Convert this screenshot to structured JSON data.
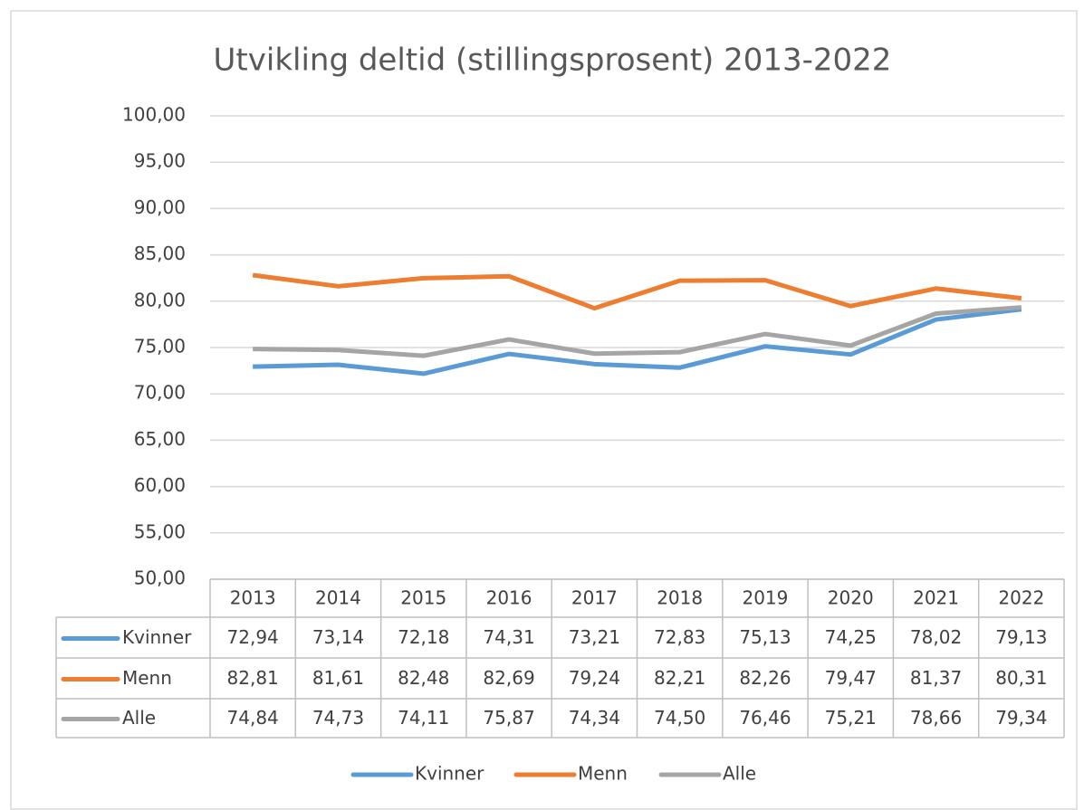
{
  "chart_data": {
    "type": "line",
    "title": "Utvikling deltid (stillingsprosent) 2013-2022",
    "categories": [
      "2013",
      "2014",
      "2015",
      "2016",
      "2017",
      "2018",
      "2019",
      "2020",
      "2021",
      "2022"
    ],
    "series": [
      {
        "name": "Kvinner",
        "color": "#5b9bd5",
        "values": [
          72.94,
          73.14,
          72.18,
          74.31,
          73.21,
          72.83,
          75.13,
          74.25,
          78.02,
          79.13
        ],
        "value_labels": [
          "72,94",
          "73,14",
          "72,18",
          "74,31",
          "73,21",
          "72,83",
          "75,13",
          "74,25",
          "78,02",
          "79,13"
        ]
      },
      {
        "name": "Menn",
        "color": "#ed7d31",
        "values": [
          82.81,
          81.61,
          82.48,
          82.69,
          79.24,
          82.21,
          82.26,
          79.47,
          81.37,
          80.31
        ],
        "value_labels": [
          "82,81",
          "81,61",
          "82,48",
          "82,69",
          "79,24",
          "82,21",
          "82,26",
          "79,47",
          "81,37",
          "80,31"
        ]
      },
      {
        "name": "Alle",
        "color": "#a5a5a5",
        "values": [
          74.84,
          74.73,
          74.11,
          75.87,
          74.34,
          74.5,
          76.46,
          75.21,
          78.66,
          79.34
        ],
        "value_labels": [
          "74,84",
          "74,73",
          "74,11",
          "75,87",
          "74,34",
          "74,50",
          "76,46",
          "75,21",
          "78,66",
          "79,34"
        ]
      }
    ],
    "ylim": [
      50,
      100
    ],
    "yticks": [
      {
        "value": 50,
        "label": "50,00"
      },
      {
        "value": 55,
        "label": "55,00"
      },
      {
        "value": 60,
        "label": "60,00"
      },
      {
        "value": 65,
        "label": "65,00"
      },
      {
        "value": 70,
        "label": "70,00"
      },
      {
        "value": 75,
        "label": "75,00"
      },
      {
        "value": 80,
        "label": "80,00"
      },
      {
        "value": 85,
        "label": "85,00"
      },
      {
        "value": 90,
        "label": "90,00"
      },
      {
        "value": 95,
        "label": "95,00"
      },
      {
        "value": 100,
        "label": "100,00"
      }
    ],
    "grid": true,
    "legend": "bottom",
    "data_table": true
  }
}
